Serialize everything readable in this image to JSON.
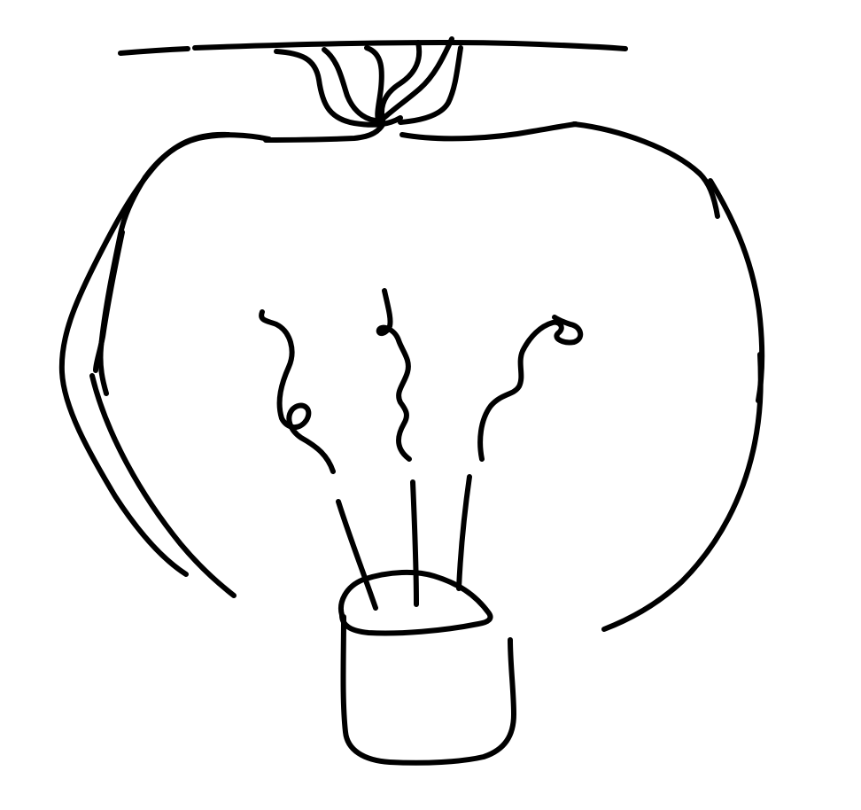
{
  "canvas": {
    "background": "#ffffff",
    "ink_color": "#000000"
  },
  "drawing": {
    "subject": "light-bulb",
    "parts": [
      "mount-plate",
      "wires-knot",
      "bulb-glass",
      "filaments",
      "stems",
      "socket-cap"
    ]
  }
}
